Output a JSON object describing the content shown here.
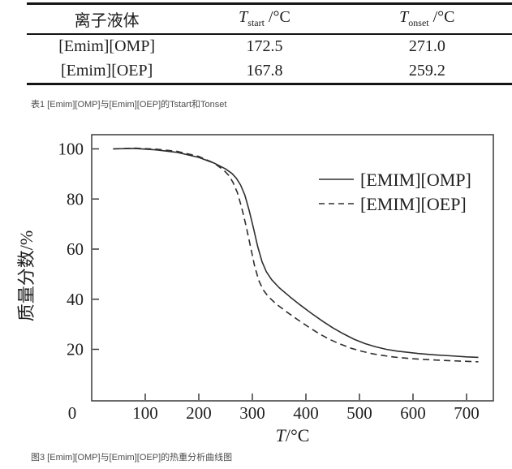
{
  "table": {
    "caption": "表1 [Emim][OMP]与[Emim][OEP]的Tstart和Tonset",
    "headers": [
      {
        "label": "离子液体"
      },
      {
        "symbol": "T",
        "sub": "start",
        "unit": " /°C"
      },
      {
        "symbol": "T",
        "sub": "onset",
        "unit": " /°C"
      }
    ],
    "rows": [
      {
        "name": "[Emim][OMP]",
        "t_start": "172.5",
        "t_onset": "271.0"
      },
      {
        "name": "[Emim][OEP]",
        "t_start": "167.8",
        "t_onset": "259.2"
      }
    ]
  },
  "figure": {
    "caption": "图3 [Emim][OMP]与[Emim][OEP]的热重分析曲线图"
  },
  "chart_data": {
    "type": "line",
    "title": "",
    "xlabel": "T/°C",
    "ylabel": "质量分数/%",
    "xlim": [
      0,
      750
    ],
    "ylim": [
      0,
      105
    ],
    "x_ticks": [
      0,
      100,
      200,
      300,
      400,
      500,
      600,
      700
    ],
    "y_ticks": [
      20,
      40,
      60,
      80,
      100
    ],
    "grid": false,
    "legend_position": "upper-right-inside",
    "axis_color": "#3a3a3a",
    "line_color": "#2e2e2e",
    "series": [
      {
        "name": "[EMIM][OMP]",
        "style": "solid",
        "color": "#2e2e2e",
        "points": [
          [
            40,
            100
          ],
          [
            80,
            100.2
          ],
          [
            120,
            99.6
          ],
          [
            160,
            98.6
          ],
          [
            200,
            96.6
          ],
          [
            230,
            94.2
          ],
          [
            250,
            92
          ],
          [
            262,
            90.2
          ],
          [
            270,
            88.3
          ],
          [
            278,
            85.6
          ],
          [
            286,
            81.5
          ],
          [
            294,
            75.5
          ],
          [
            302,
            68.5
          ],
          [
            310,
            61
          ],
          [
            318,
            55
          ],
          [
            326,
            51
          ],
          [
            336,
            47.8
          ],
          [
            350,
            44.6
          ],
          [
            370,
            41
          ],
          [
            390,
            37.6
          ],
          [
            410,
            34.4
          ],
          [
            430,
            31.4
          ],
          [
            450,
            28.6
          ],
          [
            470,
            26.2
          ],
          [
            490,
            24
          ],
          [
            510,
            22.3
          ],
          [
            530,
            21
          ],
          [
            550,
            20
          ],
          [
            570,
            19.3
          ],
          [
            590,
            18.8
          ],
          [
            610,
            18.3
          ],
          [
            640,
            17.8
          ],
          [
            670,
            17.4
          ],
          [
            700,
            17
          ],
          [
            722,
            16.8
          ]
        ]
      },
      {
        "name": "[EMIM][OEP]",
        "style": "dashed",
        "color": "#2e2e2e",
        "points": [
          [
            40,
            100
          ],
          [
            80,
            100.3
          ],
          [
            120,
            99.9
          ],
          [
            160,
            99
          ],
          [
            200,
            97
          ],
          [
            228,
            94.4
          ],
          [
            246,
            91.6
          ],
          [
            256,
            89.4
          ],
          [
            264,
            86.6
          ],
          [
            272,
            82.6
          ],
          [
            280,
            76.6
          ],
          [
            288,
            69.5
          ],
          [
            296,
            61.5
          ],
          [
            304,
            53.5
          ],
          [
            312,
            47.5
          ],
          [
            320,
            43.8
          ],
          [
            330,
            41
          ],
          [
            345,
            38
          ],
          [
            365,
            34.8
          ],
          [
            385,
            31.8
          ],
          [
            405,
            28.9
          ],
          [
            425,
            26.2
          ],
          [
            445,
            23.9
          ],
          [
            465,
            22
          ],
          [
            485,
            20.4
          ],
          [
            505,
            19.2
          ],
          [
            525,
            18.2
          ],
          [
            545,
            17.5
          ],
          [
            565,
            16.9
          ],
          [
            590,
            16.4
          ],
          [
            615,
            16
          ],
          [
            645,
            15.7
          ],
          [
            675,
            15.4
          ],
          [
            700,
            15.2
          ],
          [
            722,
            15
          ]
        ]
      }
    ]
  }
}
